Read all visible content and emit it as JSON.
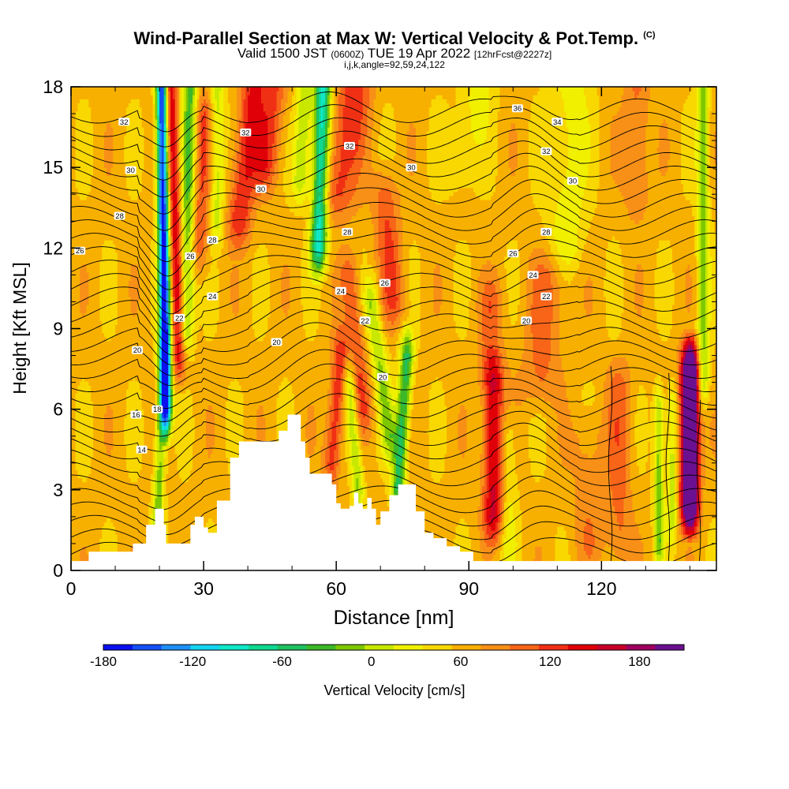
{
  "title": {
    "main": "Wind-Parallel Section at Max W: Vertical Velocity & Pot.Temp.",
    "copyright": "(C)",
    "valid_prefix": "Valid 1500 JST",
    "valid_utc": "(0600Z)",
    "valid_date": "TUE 19 Apr 2022",
    "forecast": "[12hrFcst@2227z]",
    "indices": "i,j,k,angle=92,59,24,122"
  },
  "chart_data": {
    "type": "heatmap",
    "xlabel": "Distance [nm]",
    "ylabel": "Height [Kft MSL]",
    "xlim": [
      0,
      146
    ],
    "ylim": [
      0,
      18
    ],
    "x_ticks": [
      0,
      30,
      60,
      90,
      120
    ],
    "y_ticks": [
      0,
      3,
      6,
      9,
      12,
      15,
      18
    ],
    "colorbar": {
      "label": "Vertical Velocity [cm/s]",
      "min": -180,
      "max": 210,
      "step": 15,
      "ticks": [
        -180,
        -120,
        -60,
        0,
        60,
        120,
        180
      ],
      "colors": [
        "#0a10f0",
        "#1450f5",
        "#1e90f8",
        "#14d4f0",
        "#10e8c8",
        "#10d890",
        "#1ec060",
        "#3cb828",
        "#7ec800",
        "#c8e800",
        "#f0f000",
        "#f8d800",
        "#f8b000",
        "#f89018",
        "#f86418",
        "#f03014",
        "#e00008",
        "#c8002a",
        "#a00060",
        "#6a1090"
      ]
    },
    "terrain": [
      [
        0,
        0.35
      ],
      [
        4,
        0.7
      ],
      [
        12,
        0.7
      ],
      [
        14,
        1
      ],
      [
        17,
        1.7
      ],
      [
        19,
        2.3
      ],
      [
        21,
        1.7
      ],
      [
        21.5,
        1
      ],
      [
        26,
        1
      ],
      [
        27,
        1.7
      ],
      [
        28,
        2
      ],
      [
        30,
        1.6
      ],
      [
        31,
        1.4
      ],
      [
        33,
        2.6
      ],
      [
        36,
        4.2
      ],
      [
        38,
        4.8
      ],
      [
        46,
        4.8
      ],
      [
        47,
        5.2
      ],
      [
        49,
        5.8
      ],
      [
        51,
        5.8
      ],
      [
        52,
        4.8
      ],
      [
        53,
        4.2
      ],
      [
        54,
        3.6
      ],
      [
        57,
        3.6
      ],
      [
        59,
        3.2
      ],
      [
        60,
        2.5
      ],
      [
        61,
        2.3
      ],
      [
        63,
        2.4
      ],
      [
        64,
        2.9
      ],
      [
        65,
        2.5
      ],
      [
        66,
        2.3
      ],
      [
        67,
        2.7
      ],
      [
        68,
        2.3
      ],
      [
        69,
        1.7
      ],
      [
        70,
        2.2
      ],
      [
        72,
        2.8
      ],
      [
        74,
        3.2
      ],
      [
        76,
        3.2
      ],
      [
        78,
        2.2
      ],
      [
        80,
        1.4
      ],
      [
        82,
        1.2
      ],
      [
        85,
        0.9
      ],
      [
        88,
        0.7
      ],
      [
        91,
        0.35
      ],
      [
        146,
        0.35
      ]
    ],
    "theta_contour_labels": [
      {
        "text": "32",
        "x": 12,
        "y": 16.7
      },
      {
        "text": "30",
        "x": 13.5,
        "y": 14.9
      },
      {
        "text": "28",
        "x": 11,
        "y": 13.2
      },
      {
        "text": "26",
        "x": 2,
        "y": 11.9
      },
      {
        "text": "20",
        "x": 15,
        "y": 8.2
      },
      {
        "text": "16",
        "x": 14.7,
        "y": 5.8
      },
      {
        "text": "18",
        "x": 19.5,
        "y": 6.0
      },
      {
        "text": "14",
        "x": 16,
        "y": 4.5
      },
      {
        "text": "22",
        "x": 24.5,
        "y": 9.4
      },
      {
        "text": "24",
        "x": 32,
        "y": 10.2
      },
      {
        "text": "26",
        "x": 27,
        "y": 11.7
      },
      {
        "text": "28",
        "x": 32,
        "y": 12.3
      },
      {
        "text": "32",
        "x": 39.5,
        "y": 16.3
      },
      {
        "text": "30",
        "x": 43,
        "y": 14.2
      },
      {
        "text": "20",
        "x": 46.5,
        "y": 8.5
      },
      {
        "text": "32",
        "x": 63,
        "y": 15.8
      },
      {
        "text": "30",
        "x": 77,
        "y": 15.0
      },
      {
        "text": "28",
        "x": 62.5,
        "y": 12.6
      },
      {
        "text": "24",
        "x": 61,
        "y": 10.4
      },
      {
        "text": "26",
        "x": 71,
        "y": 10.7
      },
      {
        "text": "22",
        "x": 66.5,
        "y": 9.3
      },
      {
        "text": "20",
        "x": 70.5,
        "y": 7.2
      },
      {
        "text": "36",
        "x": 101,
        "y": 17.2
      },
      {
        "text": "34",
        "x": 110,
        "y": 16.7
      },
      {
        "text": "32",
        "x": 107.5,
        "y": 15.6
      },
      {
        "text": "30",
        "x": 113.5,
        "y": 14.5
      },
      {
        "text": "28",
        "x": 107.5,
        "y": 12.6
      },
      {
        "text": "26",
        "x": 100,
        "y": 11.8
      },
      {
        "text": "24",
        "x": 104.5,
        "y": 11.0
      },
      {
        "text": "22",
        "x": 107.5,
        "y": 10.2
      },
      {
        "text": "20",
        "x": 103,
        "y": 9.3
      }
    ]
  }
}
